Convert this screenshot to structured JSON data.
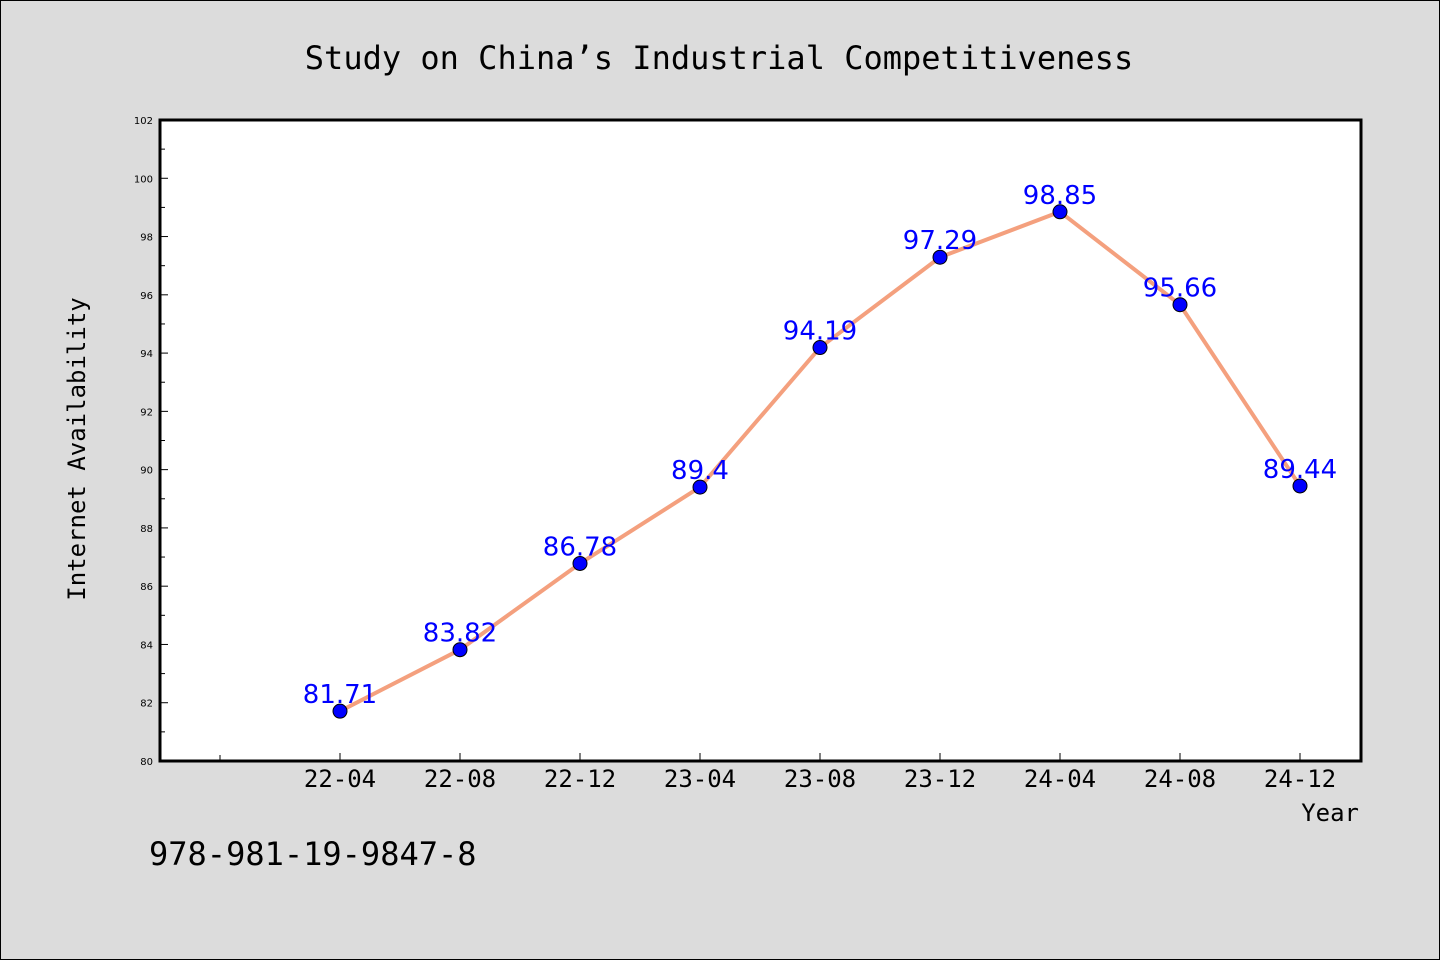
{
  "chart_data": {
    "type": "line",
    "title": "Study on China’s Industrial Competitiveness",
    "xlabel": "Year",
    "ylabel": "Internet Availability",
    "categories": [
      "22-04",
      "22-08",
      "22-12",
      "23-04",
      "23-08",
      "23-12",
      "24-04",
      "24-08",
      "24-12"
    ],
    "series": [
      {
        "values": [
          81.71,
          83.82,
          86.78,
          89.4,
          94.19,
          97.29,
          98.85,
          95.66,
          89.44
        ],
        "labels": [
          "81.71",
          "83.82",
          "86.78",
          "89.4",
          "94.19",
          "97.29",
          "98.85",
          "95.66",
          "89.44"
        ]
      }
    ],
    "ylim": [
      80,
      102
    ],
    "yticks": [
      "80",
      "82",
      "84",
      "86",
      "88",
      "90",
      "92",
      "94",
      "96",
      "98",
      "100",
      "102"
    ],
    "grid": false,
    "legend": "none",
    "colors": {
      "line": "#f4a07e",
      "marker": "#0000ff",
      "data_label": "#0000ff",
      "background": "#dcdcdc",
      "plot_background": "#ffffff"
    }
  },
  "footer": {
    "isbn": "978-981-19-9847-8"
  }
}
